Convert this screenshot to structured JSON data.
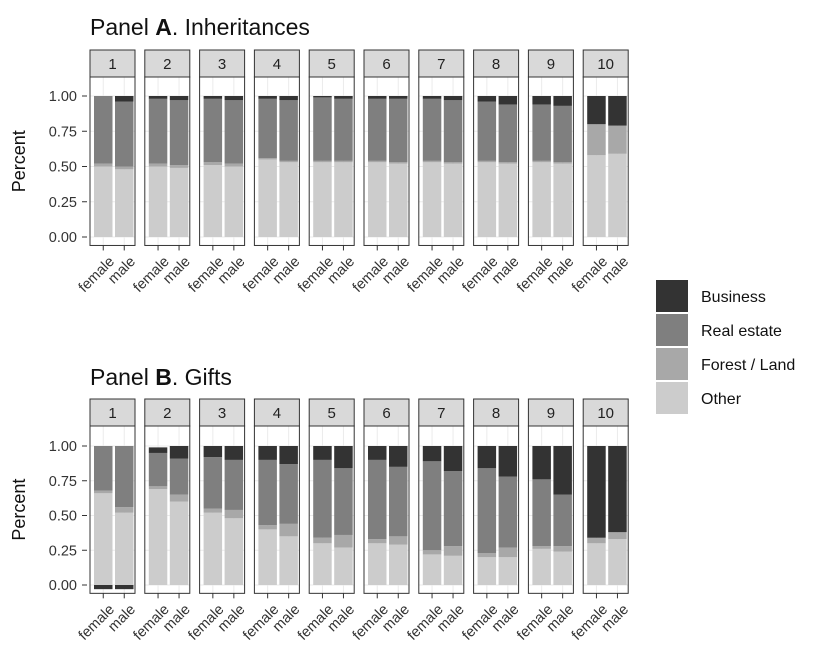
{
  "legend": {
    "items": [
      {
        "label": "Business",
        "color": "#333333"
      },
      {
        "label": "Real estate",
        "color": "#7f7f7f"
      },
      {
        "label": "Forest / Land",
        "color": "#a8a8a8"
      },
      {
        "label": "Other",
        "color": "#cccccc"
      }
    ]
  },
  "chart_data": [
    {
      "type": "bar",
      "stacked": true,
      "title_prefix": "Panel ",
      "title_bold": "A",
      "title_suffix": ". Inheritances",
      "ylabel": "Percent",
      "ylim": [
        0,
        1
      ],
      "yticks": [
        "0.00",
        "0.25",
        "0.50",
        "0.75",
        "1.00"
      ],
      "facets": [
        "1",
        "2",
        "3",
        "4",
        "5",
        "6",
        "7",
        "8",
        "9",
        "10"
      ],
      "categories": [
        "female",
        "male"
      ],
      "stack_order": [
        "Other",
        "Forest / Land",
        "Real estate",
        "Business"
      ],
      "series": [
        {
          "name": "Other",
          "values": [
            [
              0.5,
              0.48
            ],
            [
              0.5,
              0.49
            ],
            [
              0.51,
              0.5
            ],
            [
              0.55,
              0.53
            ],
            [
              0.53,
              0.53
            ],
            [
              0.53,
              0.52
            ],
            [
              0.53,
              0.52
            ],
            [
              0.53,
              0.52
            ],
            [
              0.53,
              0.52
            ],
            [
              0.58,
              0.59
            ]
          ]
        },
        {
          "name": "Forest / Land",
          "values": [
            [
              0.02,
              0.02
            ],
            [
              0.02,
              0.02
            ],
            [
              0.02,
              0.02
            ],
            [
              0.01,
              0.01
            ],
            [
              0.01,
              0.01
            ],
            [
              0.01,
              0.01
            ],
            [
              0.01,
              0.01
            ],
            [
              0.01,
              0.01
            ],
            [
              0.01,
              0.01
            ],
            [
              0.22,
              0.2
            ]
          ]
        },
        {
          "name": "Real estate",
          "values": [
            [
              0.48,
              0.46
            ],
            [
              0.46,
              0.46
            ],
            [
              0.45,
              0.45
            ],
            [
              0.42,
              0.43
            ],
            [
              0.45,
              0.44
            ],
            [
              0.44,
              0.45
            ],
            [
              0.44,
              0.44
            ],
            [
              0.42,
              0.41
            ],
            [
              0.4,
              0.4
            ],
            [
              0.0,
              0.0
            ]
          ]
        },
        {
          "name": "Business",
          "values": [
            [
              0.0,
              0.04
            ],
            [
              0.02,
              0.03
            ],
            [
              0.02,
              0.03
            ],
            [
              0.02,
              0.03
            ],
            [
              0.01,
              0.02
            ],
            [
              0.02,
              0.02
            ],
            [
              0.02,
              0.03
            ],
            [
              0.04,
              0.06
            ],
            [
              0.06,
              0.07
            ],
            [
              0.2,
              0.21
            ]
          ]
        }
      ]
    },
    {
      "type": "bar",
      "stacked": true,
      "title_prefix": "Panel ",
      "title_bold": "B",
      "title_suffix": ". Gifts",
      "ylabel": "Percent",
      "ylim": [
        0,
        1
      ],
      "yticks": [
        "0.00",
        "0.25",
        "0.50",
        "0.75",
        "1.00"
      ],
      "facets": [
        "1",
        "2",
        "3",
        "4",
        "5",
        "6",
        "7",
        "8",
        "9",
        "10"
      ],
      "categories": [
        "female",
        "male"
      ],
      "stack_order": [
        "Other",
        "Forest / Land",
        "Real estate",
        "Business"
      ],
      "series": [
        {
          "name": "Other",
          "values": [
            [
              0.66,
              0.52
            ],
            [
              0.69,
              0.6
            ],
            [
              0.52,
              0.48
            ],
            [
              0.4,
              0.35
            ],
            [
              0.3,
              0.27
            ],
            [
              0.3,
              0.29
            ],
            [
              0.22,
              0.21
            ],
            [
              0.2,
              0.2
            ],
            [
              0.26,
              0.24
            ],
            [
              0.3,
              0.33
            ]
          ]
        },
        {
          "name": "Forest / Land",
          "values": [
            [
              0.02,
              0.04
            ],
            [
              0.02,
              0.05
            ],
            [
              0.03,
              0.06
            ],
            [
              0.03,
              0.09
            ],
            [
              0.04,
              0.09
            ],
            [
              0.03,
              0.06
            ],
            [
              0.03,
              0.07
            ],
            [
              0.03,
              0.07
            ],
            [
              0.02,
              0.04
            ],
            [
              0.04,
              0.05
            ]
          ]
        },
        {
          "name": "Real estate",
          "values": [
            [
              0.32,
              0.44
            ],
            [
              0.24,
              0.26
            ],
            [
              0.37,
              0.36
            ],
            [
              0.47,
              0.43
            ],
            [
              0.56,
              0.48
            ],
            [
              0.57,
              0.5
            ],
            [
              0.64,
              0.54
            ],
            [
              0.61,
              0.51
            ],
            [
              0.48,
              0.37
            ],
            [
              0.0,
              0.0
            ]
          ]
        },
        {
          "name": "Business",
          "values": [
            [
              -0.03,
              -0.03
            ],
            [
              0.04,
              0.09
            ],
            [
              0.08,
              0.1
            ],
            [
              0.1,
              0.13
            ],
            [
              0.1,
              0.16
            ],
            [
              0.1,
              0.15
            ],
            [
              0.11,
              0.18
            ],
            [
              0.16,
              0.22
            ],
            [
              0.24,
              0.35
            ],
            [
              0.66,
              0.62
            ]
          ]
        }
      ]
    }
  ]
}
